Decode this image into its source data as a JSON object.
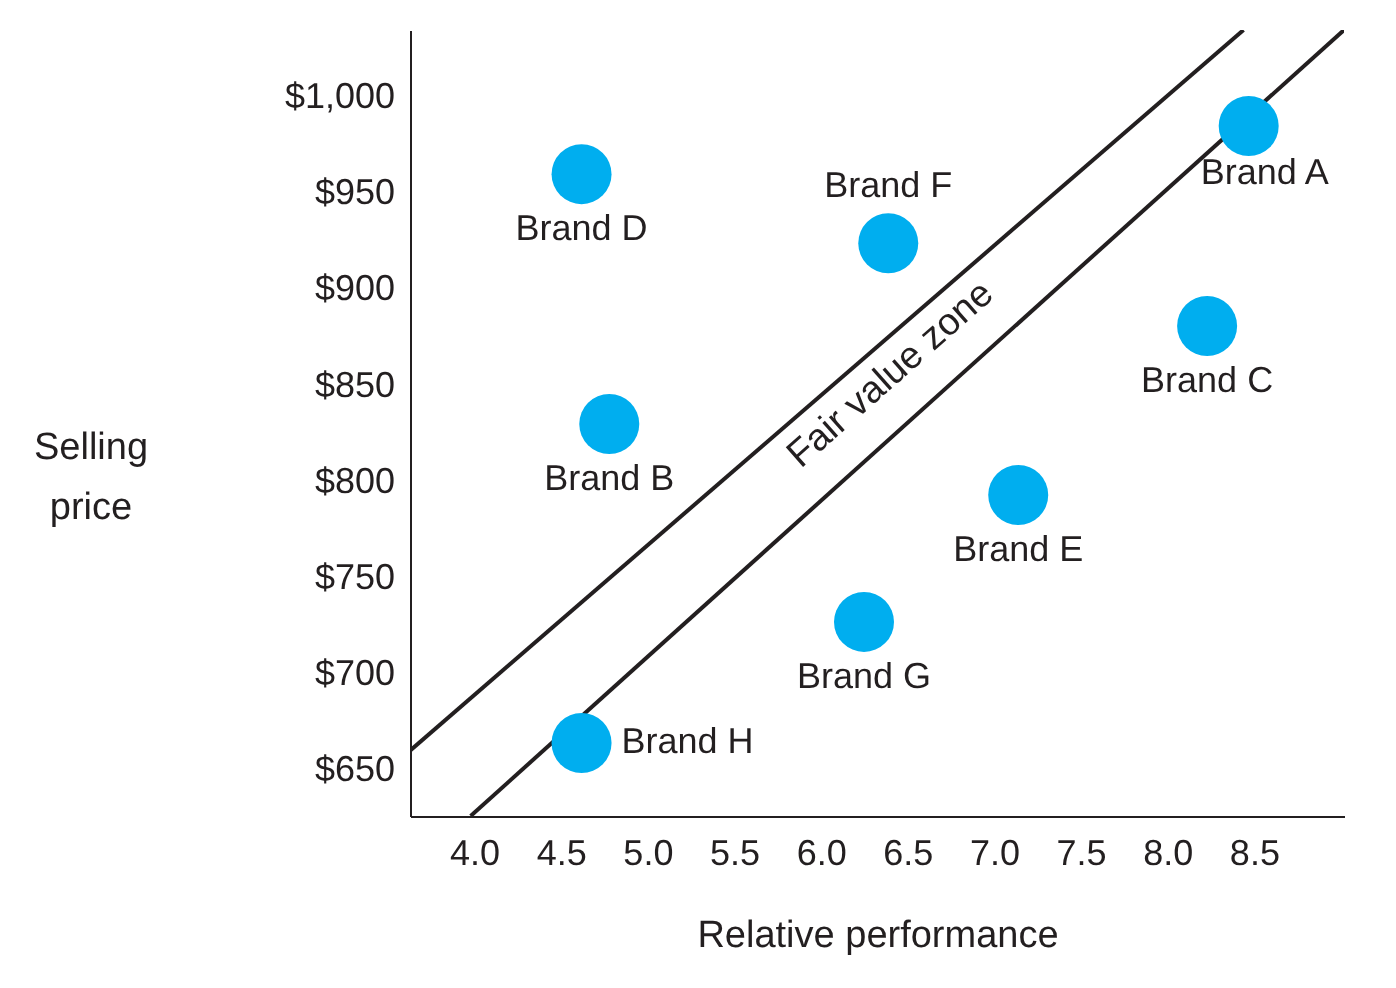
{
  "chart_data": {
    "type": "scatter",
    "xlabel": "Relative performance",
    "ylabel": "Selling price",
    "xlim": [
      3.63,
      9.02
    ],
    "ylim": [
      626,
      1035
    ],
    "xticks": [
      {
        "value": 4,
        "label": "4.0"
      },
      {
        "value": 4.5,
        "label": "4.5"
      },
      {
        "value": 5,
        "label": "5.0"
      },
      {
        "value": 5.5,
        "label": "5.5"
      },
      {
        "value": 6,
        "label": "6.0"
      },
      {
        "value": 6.5,
        "label": "6.5"
      },
      {
        "value": 7,
        "label": "7.0"
      },
      {
        "value": 7.5,
        "label": "7.5"
      },
      {
        "value": 8,
        "label": "8.0"
      },
      {
        "value": 8.5,
        "label": "8.5"
      }
    ],
    "yticks": [
      {
        "value": 650,
        "label": "$650"
      },
      {
        "value": 700,
        "label": "$700"
      },
      {
        "value": 750,
        "label": "$750"
      },
      {
        "value": 800,
        "label": "$800"
      },
      {
        "value": 850,
        "label": "$850"
      },
      {
        "value": 900,
        "label": "$900"
      },
      {
        "value": 950,
        "label": "$950"
      },
      {
        "value": 1000,
        "label": "$1,000"
      }
    ],
    "grid": false,
    "marker": "circle",
    "series": [
      {
        "name": "Brand A",
        "color": "#00aeef",
        "x": [
          8.47
        ],
        "values": [
          985
        ]
      },
      {
        "name": "Brand B",
        "color": "#00aeef",
        "x": [
          4.78
        ],
        "values": [
          830
        ]
      },
      {
        "name": "Brand C",
        "color": "#00aeef",
        "x": [
          8.23
        ],
        "values": [
          881
        ]
      },
      {
        "name": "Brand D",
        "color": "#00aeef",
        "x": [
          4.62
        ],
        "values": [
          960
        ]
      },
      {
        "name": "Brand E",
        "color": "#00aeef",
        "x": [
          7.14
        ],
        "values": [
          793
        ]
      },
      {
        "name": "Brand F",
        "color": "#00aeef",
        "x": [
          6.39
        ],
        "values": [
          924
        ]
      },
      {
        "name": "Brand G",
        "color": "#00aeef",
        "x": [
          6.25
        ],
        "values": [
          727
        ]
      },
      {
        "name": "Brand H",
        "color": "#00aeef",
        "x": [
          4.62
        ],
        "values": [
          664
        ]
      },
      {
        "type": "line",
        "color": "#231f20",
        "line_style": "solid",
        "marker": "none",
        "x": [
          3.63,
          8.44
        ],
        "values": [
          660,
          1035
        ]
      },
      {
        "type": "line",
        "color": "#231f20",
        "line_style": "solid",
        "marker": "none",
        "x": [
          3.98,
          9.02
        ],
        "values": [
          626,
          1035
        ]
      }
    ],
    "annotations": [
      "Fair value zone"
    ]
  }
}
